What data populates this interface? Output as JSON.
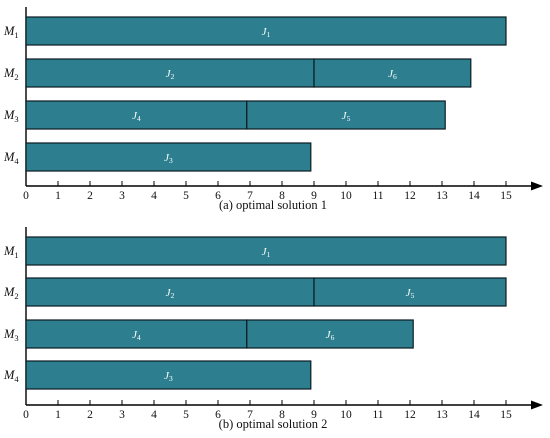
{
  "chart_data": [
    {
      "type": "gantt",
      "caption": "(a) optimal solution 1",
      "xlim": [
        0,
        15
      ],
      "x_ticks": [
        0,
        1,
        2,
        3,
        4,
        5,
        6,
        7,
        8,
        9,
        10,
        11,
        12,
        13,
        14,
        15
      ],
      "machines": [
        {
          "letter": "M",
          "sub": "1"
        },
        {
          "letter": "M",
          "sub": "2"
        },
        {
          "letter": "M",
          "sub": "3"
        },
        {
          "letter": "M",
          "sub": "4"
        }
      ],
      "tasks": [
        {
          "machine": 0,
          "job": "J",
          "sub": "1",
          "start": 0,
          "end": 15
        },
        {
          "machine": 1,
          "job": "J",
          "sub": "2",
          "start": 0,
          "end": 9
        },
        {
          "machine": 1,
          "job": "J",
          "sub": "6",
          "start": 9,
          "end": 13.9
        },
        {
          "machine": 2,
          "job": "J",
          "sub": "4",
          "start": 0,
          "end": 6.9
        },
        {
          "machine": 2,
          "job": "J",
          "sub": "5",
          "start": 6.9,
          "end": 13.1
        },
        {
          "machine": 3,
          "job": "J",
          "sub": "3",
          "start": 0,
          "end": 8.9
        }
      ]
    },
    {
      "type": "gantt",
      "caption": "(b) optimal solution 2",
      "xlim": [
        0,
        15
      ],
      "x_ticks": [
        0,
        1,
        2,
        3,
        4,
        5,
        6,
        7,
        8,
        9,
        10,
        11,
        12,
        13,
        14,
        15
      ],
      "machines": [
        {
          "letter": "M",
          "sub": "1"
        },
        {
          "letter": "M",
          "sub": "2"
        },
        {
          "letter": "M",
          "sub": "3"
        },
        {
          "letter": "M",
          "sub": "4"
        }
      ],
      "tasks": [
        {
          "machine": 0,
          "job": "J",
          "sub": "1",
          "start": 0,
          "end": 15
        },
        {
          "machine": 1,
          "job": "J",
          "sub": "2",
          "start": 0,
          "end": 9
        },
        {
          "machine": 1,
          "job": "J",
          "sub": "5",
          "start": 9,
          "end": 15
        },
        {
          "machine": 2,
          "job": "J",
          "sub": "4",
          "start": 0,
          "end": 6.9
        },
        {
          "machine": 2,
          "job": "J",
          "sub": "6",
          "start": 6.9,
          "end": 12.1
        },
        {
          "machine": 3,
          "job": "J",
          "sub": "3",
          "start": 0,
          "end": 8.9
        }
      ]
    }
  ],
  "colors": {
    "bar_fill": "#2d7f8f",
    "bar_stroke": "#0b1c22",
    "axis": "#000000"
  }
}
